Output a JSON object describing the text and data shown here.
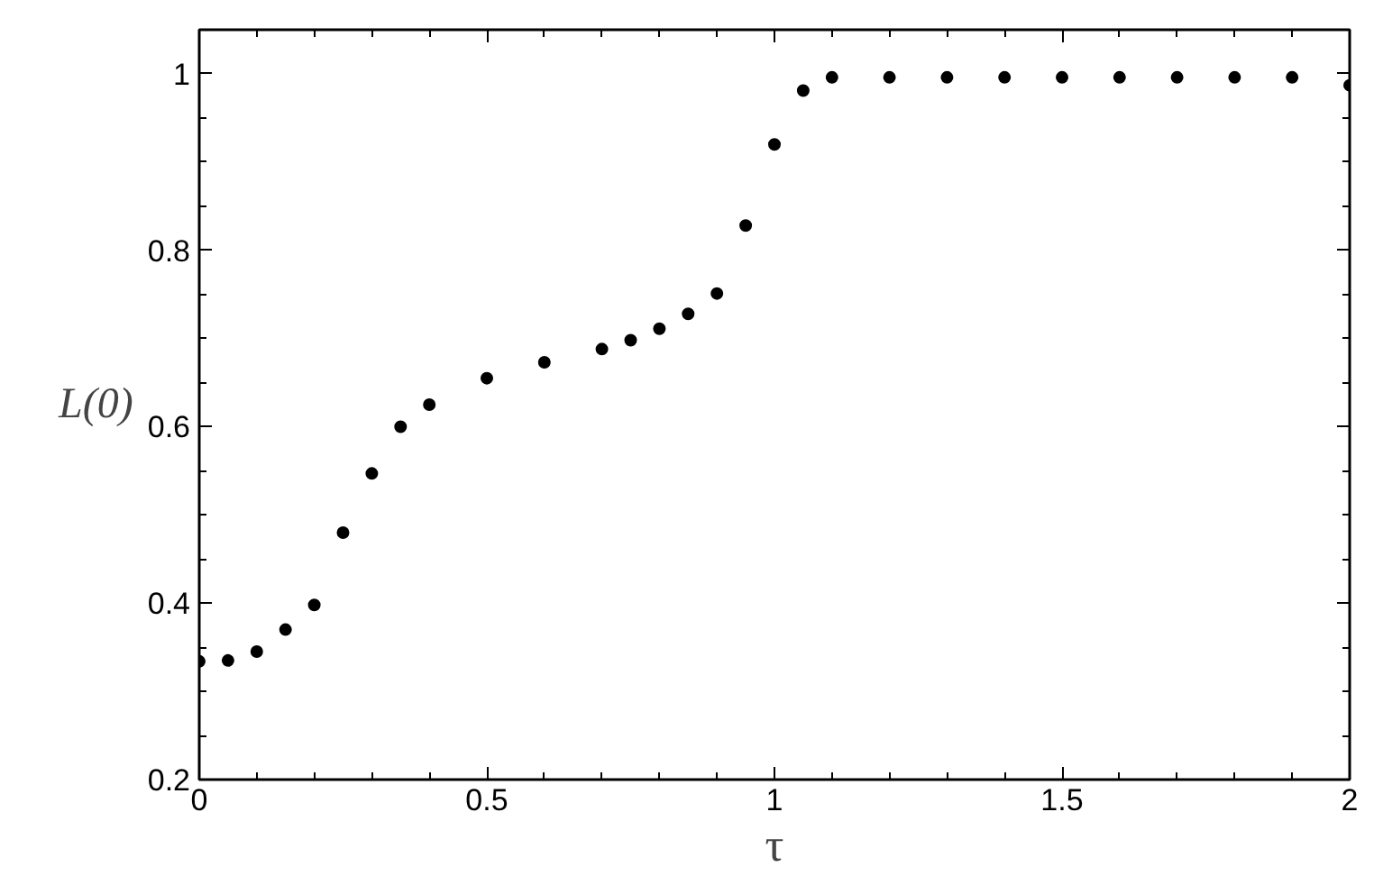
{
  "chart_data": {
    "type": "scatter",
    "xlabel": "τ",
    "ylabel": "L(0)",
    "x": [
      0,
      0.05,
      0.1,
      0.15,
      0.2,
      0.25,
      0.3,
      0.35,
      0.4,
      0.5,
      0.6,
      0.7,
      0.75,
      0.8,
      0.85,
      0.9,
      0.95,
      1.0,
      1.05,
      1.1,
      1.2,
      1.3,
      1.4,
      1.5,
      1.6,
      1.7,
      1.8,
      1.9,
      2.0
    ],
    "series": [
      {
        "color": "#000000",
        "values": [
          0.334,
          0.335,
          0.345,
          0.37,
          0.398,
          0.48,
          0.547,
          0.6,
          0.625,
          0.655,
          0.673,
          0.688,
          0.698,
          0.711,
          0.728,
          0.751,
          0.828,
          0.92,
          0.981,
          0.996,
          0.996,
          0.996,
          0.996,
          0.996,
          0.996,
          0.996,
          0.996,
          0.996,
          0.987
        ]
      }
    ],
    "xlim": [
      0,
      2
    ],
    "ylim": [
      0.2,
      1.05
    ],
    "xticks": [
      0,
      0.5,
      1,
      1.5,
      2
    ],
    "yticks": [
      0.2,
      0.4,
      0.6,
      0.8,
      1
    ],
    "marker": "circle",
    "grid": false
  }
}
